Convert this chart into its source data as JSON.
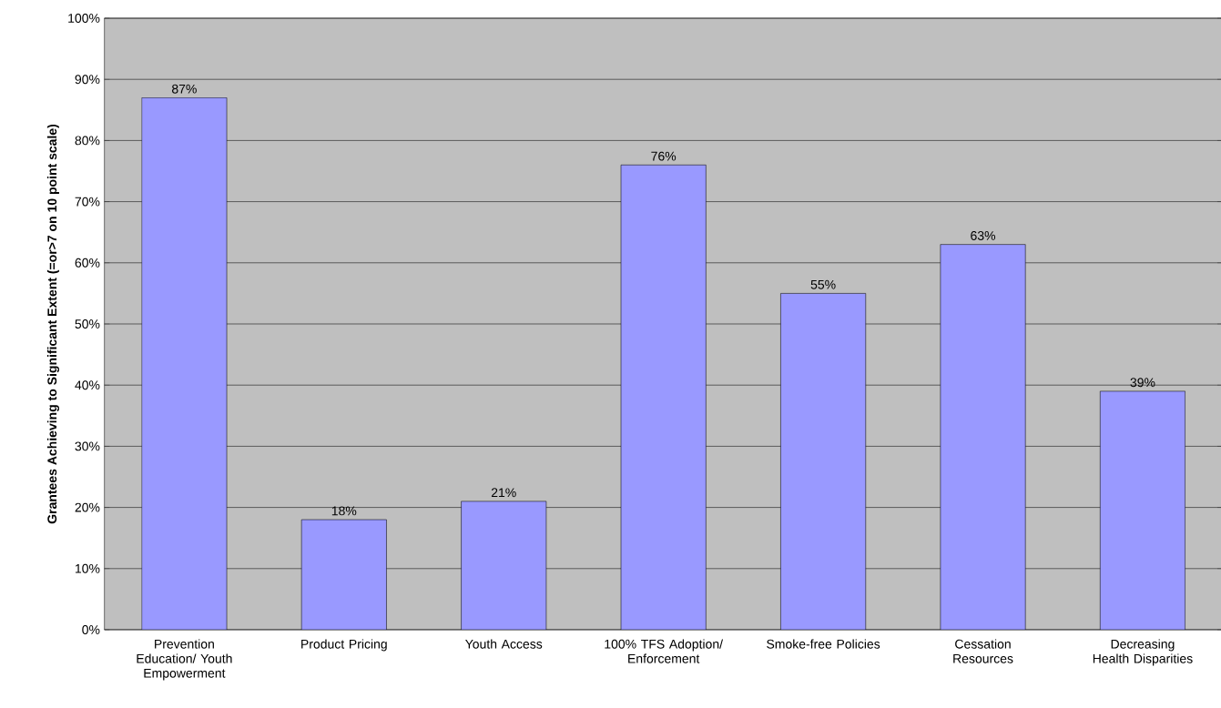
{
  "chart_data": {
    "type": "bar",
    "ylabel": "Grantees Achieving to Significant Extent (=or>7 on 10 point scale)",
    "categories": [
      "Prevention Education/ Youth Empowerment",
      "Product Pricing",
      "Youth Access",
      "100% TFS Adoption/ Enforcement",
      "Smoke-free Policies",
      "Cessation Resources",
      "Decreasing Health Disparities"
    ],
    "values": [
      87,
      18,
      21,
      76,
      55,
      63,
      39
    ],
    "value_labels": [
      "87%",
      "18%",
      "21%",
      "76%",
      "55%",
      "63%",
      "39%"
    ],
    "color": "#9999ff",
    "ylim": [
      0,
      100
    ],
    "yticks": [
      {
        "value": 0,
        "label": "0%"
      },
      {
        "value": 10,
        "label": "10%"
      },
      {
        "value": 20,
        "label": "20%"
      },
      {
        "value": 30,
        "label": "30%"
      },
      {
        "value": 40,
        "label": "40%"
      },
      {
        "value": 50,
        "label": "50%"
      },
      {
        "value": 60,
        "label": "60%"
      },
      {
        "value": 70,
        "label": "70%"
      },
      {
        "value": 80,
        "label": "80%"
      },
      {
        "value": 90,
        "label": "90%"
      },
      {
        "value": 100,
        "label": "100%"
      }
    ],
    "grid": "y"
  }
}
